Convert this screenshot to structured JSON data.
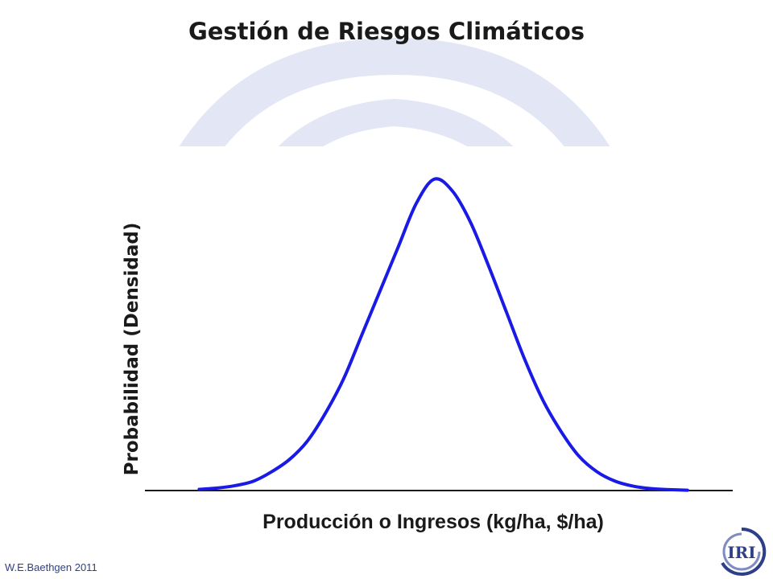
{
  "slide": {
    "title": "Gestión de Riesgos Climáticos",
    "footer": "W.E.Baethgen 2011"
  },
  "logo": {
    "text": "IRI",
    "icon": "iri-logo-icon"
  },
  "colors": {
    "curve": "#1a1ae6",
    "axis": "#1a1a1a",
    "background_arcs": "#e3e6f5",
    "footer": "#2e3f87"
  },
  "chart_data": {
    "type": "line",
    "title": "",
    "xlabel": "Producción o Ingresos (kg/ha, $/ha)",
    "ylabel": "Probabilidad (Densidad)",
    "grid": false,
    "legend": "none",
    "xlim": [
      -3.2,
      3.3
    ],
    "ylim": [
      0,
      1
    ],
    "series": [
      {
        "x": [
          -2.6,
          -2.4,
          -2.2,
          -2.0,
          -1.8,
          -1.6,
          -1.4,
          -1.2,
          -1.0,
          -0.8,
          -0.6,
          -0.4,
          -0.2,
          0.0,
          0.2,
          0.4,
          0.6,
          0.8,
          1.0,
          1.2,
          1.4,
          1.6,
          1.8,
          2.0,
          2.2,
          2.4,
          2.6,
          2.8
        ],
        "y": [
          0.004,
          0.008,
          0.016,
          0.03,
          0.06,
          0.1,
          0.16,
          0.25,
          0.36,
          0.5,
          0.64,
          0.78,
          0.92,
          0.998,
          0.96,
          0.86,
          0.72,
          0.57,
          0.42,
          0.29,
          0.19,
          0.11,
          0.06,
          0.03,
          0.014,
          0.006,
          0.003,
          0.001
        ]
      }
    ]
  }
}
